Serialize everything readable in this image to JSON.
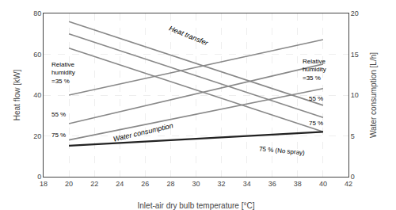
{
  "chart_data": {
    "type": "line",
    "x": [
      20,
      40
    ],
    "xlabel": "Inlet-air dry bulb temperature [°C]",
    "ylabel": "Heat flow [kW]",
    "y2label": "Water consumption [L/h]",
    "xlim": [
      18,
      42
    ],
    "xticks": [
      18,
      20,
      22,
      24,
      26,
      28,
      30,
      32,
      34,
      36,
      38,
      40,
      42
    ],
    "ylim": [
      0,
      80
    ],
    "yticks": [
      0,
      20,
      40,
      60,
      80
    ],
    "y2lim": [
      0,
      20
    ],
    "y2ticks": [
      0,
      5,
      10,
      15,
      20
    ],
    "grid": true,
    "series": [
      {
        "color": "#888888",
        "values": [
          76,
          35
        ]
      },
      {
        "color": "#888888",
        "values": [
          70,
          29
        ]
      },
      {
        "color": "#888888",
        "values": [
          63,
          22
        ]
      },
      {
        "color": "#888888",
        "values": [
          10.0,
          16.8
        ],
        "axis": "y2"
      },
      {
        "color": "#888888",
        "values": [
          6.5,
          13.8
        ],
        "axis": "y2"
      },
      {
        "color": "#888888",
        "values": [
          4.5,
          10.8
        ],
        "axis": "y2"
      },
      {
        "color": "#222222",
        "values": [
          3.8,
          5.5
        ],
        "axis": "y2"
      }
    ],
    "annotations": [
      "Heat transfer",
      "Water consumption",
      "Relative\nhumidity\n=35 %",
      "55 %",
      "75 %",
      "Relative\nhumidity\n=35 %",
      "55 %",
      "75 %",
      "75 % (No spray)"
    ]
  }
}
